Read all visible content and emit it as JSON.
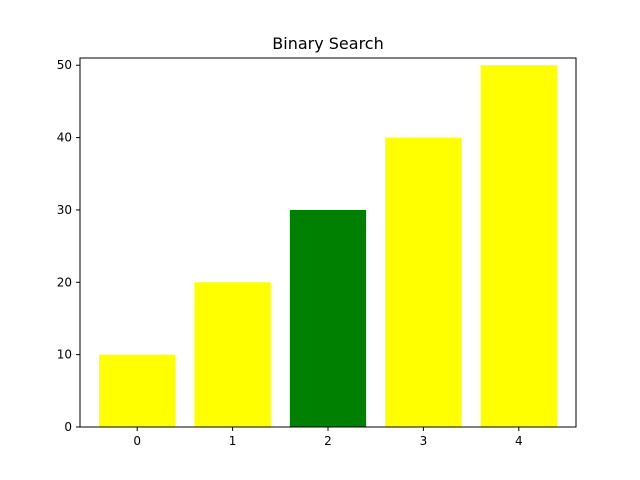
{
  "chart_data": {
    "type": "bar",
    "title": "Binary Search",
    "xlabel": "",
    "ylabel": "",
    "categories": [
      "0",
      "1",
      "2",
      "3",
      "4"
    ],
    "values": [
      10,
      20,
      30,
      40,
      50
    ],
    "colors": [
      "#ffff00",
      "#ffff00",
      "#008000",
      "#ffff00",
      "#ffff00"
    ],
    "ylim": [
      0,
      51
    ],
    "yticks": [
      0,
      10,
      20,
      30,
      40,
      50
    ],
    "grid": false,
    "legend": false
  }
}
